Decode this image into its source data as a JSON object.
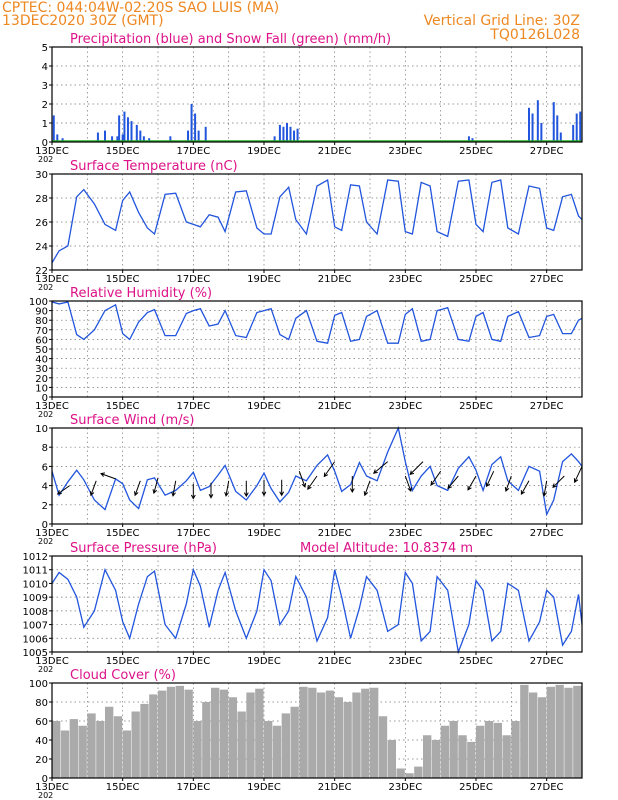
{
  "header": {
    "line1": "CPTEC:   044:04W-02:20S   SAO LUIS (MA)",
    "line2": "13DEC2020 30Z (GMT)",
    "right1": "Vertical Grid Line: 30Z",
    "right2": "TQ0126L028"
  },
  "colors": {
    "header_orange": "#ee8822",
    "title_magenta": "#dd1188",
    "series_blue": "#2255dd",
    "snow_green": "#22aa22",
    "cloud_gray": "#aaaaaa",
    "wind_arrow": "#000000"
  },
  "x_axis": {
    "date_labels": [
      "13DEC",
      "15DEC",
      "17DEC",
      "19DEC",
      "21DEC",
      "23DEC",
      "25DEC",
      "27DEC"
    ],
    "year_fragment": "202",
    "vertical_grid_time": "30Z",
    "days_span": [
      13,
      28
    ]
  },
  "chart_data": [
    {
      "type": "bar",
      "title": "Precipitation (blue) and Snow Fall (green) (mm/h)",
      "ylim": [
        0,
        5
      ],
      "yticks": [
        "0",
        "1",
        "2",
        "3",
        "4",
        "5"
      ],
      "grid": true,
      "series": [
        {
          "name": "Precipitation",
          "color": "#2255dd",
          "points": [
            {
              "day": 13.05,
              "value": 1.4
            },
            {
              "day": 13.15,
              "value": 0.4
            },
            {
              "day": 13.3,
              "value": 0.2
            },
            {
              "day": 14.3,
              "value": 0.5
            },
            {
              "day": 14.5,
              "value": 0.6
            },
            {
              "day": 14.7,
              "value": 0.3
            },
            {
              "day": 14.85,
              "value": 0.3
            },
            {
              "day": 15.0,
              "value": 0.4
            },
            {
              "day": 14.9,
              "value": 1.4
            },
            {
              "day": 15.05,
              "value": 1.6
            },
            {
              "day": 15.15,
              "value": 1.3
            },
            {
              "day": 15.25,
              "value": 1.1
            },
            {
              "day": 15.4,
              "value": 0.9
            },
            {
              "day": 15.5,
              "value": 0.6
            },
            {
              "day": 15.6,
              "value": 0.3
            },
            {
              "day": 15.75,
              "value": 0.2
            },
            {
              "day": 16.35,
              "value": 0.3
            },
            {
              "day": 16.85,
              "value": 0.6
            },
            {
              "day": 16.95,
              "value": 2.0
            },
            {
              "day": 17.05,
              "value": 1.5
            },
            {
              "day": 17.15,
              "value": 0.6
            },
            {
              "day": 17.35,
              "value": 0.8
            },
            {
              "day": 19.3,
              "value": 0.3
            },
            {
              "day": 19.45,
              "value": 0.9
            },
            {
              "day": 19.55,
              "value": 0.8
            },
            {
              "day": 19.65,
              "value": 1.0
            },
            {
              "day": 19.75,
              "value": 0.8
            },
            {
              "day": 19.85,
              "value": 0.6
            },
            {
              "day": 19.95,
              "value": 0.7
            },
            {
              "day": 24.8,
              "value": 0.3
            },
            {
              "day": 24.9,
              "value": 0.2
            },
            {
              "day": 26.5,
              "value": 1.8
            },
            {
              "day": 26.6,
              "value": 1.5
            },
            {
              "day": 26.75,
              "value": 2.2
            },
            {
              "day": 26.85,
              "value": 1.0
            },
            {
              "day": 27.2,
              "value": 2.1
            },
            {
              "day": 27.3,
              "value": 1.4
            },
            {
              "day": 27.4,
              "value": 0.5
            },
            {
              "day": 27.75,
              "value": 0.9
            },
            {
              "day": 27.85,
              "value": 1.5
            },
            {
              "day": 27.95,
              "value": 1.6
            }
          ]
        },
        {
          "name": "Snow Fall",
          "color": "#22aa22",
          "points": []
        }
      ]
    },
    {
      "type": "line",
      "title": "Surface Temperature (nC)",
      "ylim": [
        22,
        30
      ],
      "yticks": [
        "22",
        "24",
        "26",
        "28",
        "30"
      ],
      "grid": true,
      "x": [
        13.0,
        13.2,
        13.45,
        13.7,
        13.9,
        14.2,
        14.5,
        14.8,
        15.0,
        15.2,
        15.45,
        15.7,
        15.9,
        16.2,
        16.5,
        16.8,
        17.0,
        17.2,
        17.45,
        17.7,
        17.9,
        18.2,
        18.5,
        18.8,
        19.0,
        19.2,
        19.45,
        19.7,
        19.9,
        20.2,
        20.5,
        20.8,
        21.0,
        21.2,
        21.45,
        21.7,
        21.9,
        22.2,
        22.5,
        22.8,
        23.0,
        23.2,
        23.45,
        23.7,
        23.9,
        24.2,
        24.5,
        24.8,
        25.0,
        25.2,
        25.45,
        25.7,
        25.9,
        26.2,
        26.5,
        26.8,
        27.0,
        27.2,
        27.45,
        27.7,
        27.9,
        28.0
      ],
      "y": [
        22.6,
        23.6,
        24.0,
        28.1,
        28.7,
        27.5,
        25.8,
        25.3,
        27.8,
        28.5,
        26.8,
        25.5,
        25.0,
        28.3,
        28.4,
        26.0,
        25.8,
        25.6,
        26.6,
        26.4,
        25.2,
        28.5,
        28.6,
        25.5,
        25.0,
        25.0,
        28.1,
        28.9,
        26.2,
        25.0,
        29.0,
        29.5,
        25.6,
        25.3,
        29.1,
        29.0,
        26.0,
        25.0,
        29.5,
        29.4,
        25.2,
        25.0,
        29.3,
        29.0,
        25.2,
        24.8,
        29.4,
        29.5,
        25.8,
        25.2,
        29.3,
        29.5,
        25.5,
        25.0,
        29.0,
        28.8,
        25.5,
        25.3,
        28.1,
        28.3,
        26.5,
        26.2
      ],
      "color": "#2255dd"
    },
    {
      "type": "line",
      "title": "Relative Humidity (%)",
      "ylim": [
        0,
        100
      ],
      "yticks": [
        "0",
        "10",
        "20",
        "30",
        "40",
        "50",
        "60",
        "70",
        "80",
        "90",
        "100"
      ],
      "grid": true,
      "x": [
        13.0,
        13.2,
        13.45,
        13.7,
        13.9,
        14.2,
        14.5,
        14.8,
        15.0,
        15.2,
        15.45,
        15.7,
        15.9,
        16.2,
        16.5,
        16.8,
        17.0,
        17.2,
        17.45,
        17.7,
        17.9,
        18.2,
        18.5,
        18.8,
        19.0,
        19.2,
        19.45,
        19.7,
        19.9,
        20.2,
        20.5,
        20.8,
        21.0,
        21.2,
        21.45,
        21.7,
        21.9,
        22.2,
        22.5,
        22.8,
        23.0,
        23.2,
        23.45,
        23.7,
        23.9,
        24.2,
        24.5,
        24.8,
        25.0,
        25.2,
        25.45,
        25.7,
        25.9,
        26.2,
        26.5,
        26.8,
        27.0,
        27.2,
        27.45,
        27.7,
        27.9,
        28.0
      ],
      "y": [
        99,
        97,
        99,
        65,
        60,
        70,
        90,
        96,
        66,
        60,
        78,
        88,
        91,
        64,
        64,
        87,
        90,
        92,
        74,
        76,
        90,
        64,
        62,
        88,
        90,
        92,
        65,
        60,
        82,
        90,
        58,
        56,
        85,
        88,
        58,
        60,
        84,
        90,
        56,
        56,
        86,
        92,
        58,
        60,
        90,
        93,
        60,
        58,
        84,
        88,
        60,
        58,
        84,
        89,
        62,
        64,
        84,
        86,
        66,
        66,
        80,
        82
      ],
      "color": "#2255dd"
    },
    {
      "type": "line",
      "title": "Surface Wind (m/s)",
      "ylim": [
        0,
        10
      ],
      "yticks": [
        "0",
        "2",
        "4",
        "6",
        "8",
        "10"
      ],
      "grid": true,
      "x": [
        13.0,
        13.2,
        13.45,
        13.7,
        13.9,
        14.2,
        14.5,
        14.8,
        15.0,
        15.2,
        15.45,
        15.7,
        15.9,
        16.2,
        16.5,
        16.8,
        17.0,
        17.2,
        17.45,
        17.7,
        17.9,
        18.2,
        18.5,
        18.8,
        19.0,
        19.2,
        19.45,
        19.7,
        19.9,
        20.2,
        20.5,
        20.8,
        21.0,
        21.2,
        21.45,
        21.7,
        21.9,
        22.2,
        22.5,
        22.8,
        23.0,
        23.2,
        23.45,
        23.7,
        23.9,
        24.2,
        24.5,
        24.8,
        25.0,
        25.2,
        25.45,
        25.7,
        25.9,
        26.2,
        26.5,
        26.8,
        27.0,
        27.2,
        27.45,
        27.7,
        27.9,
        28.0
      ],
      "y": [
        5.5,
        3.0,
        4.4,
        5.6,
        4.6,
        2.5,
        1.5,
        4.7,
        4.2,
        2.5,
        1.6,
        4.6,
        4.8,
        3.0,
        3.5,
        4.5,
        5.4,
        3.5,
        3.9,
        5.1,
        6.1,
        3.4,
        2.5,
        4.0,
        5.3,
        3.7,
        2.3,
        3.3,
        5.0,
        4.5,
        6.1,
        7.2,
        5.5,
        3.4,
        4.1,
        6.4,
        5.0,
        4.5,
        7.5,
        10.0,
        6.5,
        3.5,
        5.0,
        6.0,
        4.0,
        3.5,
        5.8,
        7.0,
        5.6,
        3.5,
        6.2,
        7.0,
        4.5,
        3.5,
        6.0,
        5.5,
        1.0,
        2.5,
        6.5,
        7.3,
        6.5,
        6.0
      ],
      "color": "#2255dd",
      "wind_arrows": [
        {
          "day": 13.5,
          "speed": 4.0,
          "dir_deg": 235
        },
        {
          "day": 14.25,
          "speed": 4.5,
          "dir_deg": 200
        },
        {
          "day": 14.8,
          "speed": 4.7,
          "dir_deg": 290
        },
        {
          "day": 15.5,
          "speed": 4.5,
          "dir_deg": 200
        },
        {
          "day": 16.0,
          "speed": 4.8,
          "dir_deg": 195
        },
        {
          "day": 16.5,
          "speed": 4.5,
          "dir_deg": 190
        },
        {
          "day": 17.0,
          "speed": 4.2,
          "dir_deg": 180
        },
        {
          "day": 17.5,
          "speed": 4.3,
          "dir_deg": 180
        },
        {
          "day": 18.0,
          "speed": 4.5,
          "dir_deg": 190
        },
        {
          "day": 18.5,
          "speed": 4.5,
          "dir_deg": 180
        },
        {
          "day": 19.0,
          "speed": 4.6,
          "dir_deg": 180
        },
        {
          "day": 19.5,
          "speed": 4.6,
          "dir_deg": 180
        },
        {
          "day": 20.0,
          "speed": 5.5,
          "dir_deg": 160
        },
        {
          "day": 20.5,
          "speed": 5.0,
          "dir_deg": 215
        },
        {
          "day": 21.0,
          "speed": 6.5,
          "dir_deg": 215
        },
        {
          "day": 21.5,
          "speed": 5.0,
          "dir_deg": 180
        },
        {
          "day": 22.0,
          "speed": 4.5,
          "dir_deg": 200
        },
        {
          "day": 22.5,
          "speed": 6.5,
          "dir_deg": 230
        },
        {
          "day": 23.0,
          "speed": 5.0,
          "dir_deg": 160
        },
        {
          "day": 23.5,
          "speed": 6.5,
          "dir_deg": 225
        },
        {
          "day": 24.0,
          "speed": 5.5,
          "dir_deg": 215
        },
        {
          "day": 24.5,
          "speed": 5.0,
          "dir_deg": 220
        },
        {
          "day": 25.0,
          "speed": 5.0,
          "dir_deg": 210
        },
        {
          "day": 25.5,
          "speed": 5.5,
          "dir_deg": 205
        },
        {
          "day": 26.0,
          "speed": 5.0,
          "dir_deg": 200
        },
        {
          "day": 26.5,
          "speed": 4.5,
          "dir_deg": 210
        },
        {
          "day": 27.0,
          "speed": 4.5,
          "dir_deg": 190
        },
        {
          "day": 27.5,
          "speed": 5.0,
          "dir_deg": 225
        },
        {
          "day": 28.0,
          "speed": 6.0,
          "dir_deg": 205
        }
      ]
    },
    {
      "type": "line",
      "title": "Surface Pressure (hPa)",
      "extra_label": "Model Altitude: 10.8374 m",
      "ylim": [
        1005,
        1012
      ],
      "yticks": [
        "1005",
        "1006",
        "1007",
        "1008",
        "1009",
        "1010",
        "1011",
        "1012"
      ],
      "grid": true,
      "x": [
        13.0,
        13.2,
        13.45,
        13.7,
        13.9,
        14.2,
        14.5,
        14.8,
        15.0,
        15.2,
        15.45,
        15.7,
        15.9,
        16.2,
        16.5,
        16.8,
        17.0,
        17.2,
        17.45,
        17.7,
        17.9,
        18.2,
        18.5,
        18.8,
        19.0,
        19.2,
        19.45,
        19.7,
        19.9,
        20.2,
        20.5,
        20.8,
        21.0,
        21.2,
        21.45,
        21.7,
        21.9,
        22.2,
        22.5,
        22.8,
        23.0,
        23.2,
        23.45,
        23.7,
        23.9,
        24.2,
        24.5,
        24.8,
        25.0,
        25.2,
        25.45,
        25.7,
        25.9,
        26.2,
        26.5,
        26.8,
        27.0,
        27.2,
        27.45,
        27.7,
        27.9,
        28.0
      ],
      "y": [
        1010.0,
        1010.8,
        1010.3,
        1009.0,
        1006.8,
        1008.0,
        1011.0,
        1009.5,
        1007.2,
        1006.0,
        1008.5,
        1010.5,
        1010.9,
        1007.0,
        1006.0,
        1008.5,
        1011.0,
        1009.8,
        1006.8,
        1009.5,
        1010.8,
        1008.0,
        1006.0,
        1008.0,
        1011.0,
        1010.2,
        1007.0,
        1008.0,
        1010.5,
        1009.0,
        1005.8,
        1007.5,
        1011.0,
        1009.0,
        1006.0,
        1008.2,
        1010.5,
        1009.5,
        1006.5,
        1007.0,
        1010.8,
        1010.0,
        1005.8,
        1006.5,
        1010.5,
        1009.5,
        1005.0,
        1007.0,
        1010.2,
        1009.5,
        1005.8,
        1006.5,
        1010.0,
        1009.5,
        1005.8,
        1007.2,
        1009.5,
        1009.0,
        1005.5,
        1006.5,
        1009.2,
        1007.0
      ],
      "color": "#2255dd"
    },
    {
      "type": "area",
      "title": "Cloud Cover (%)",
      "ylim": [
        0,
        100
      ],
      "yticks": [
        "0",
        "20",
        "40",
        "60",
        "80",
        "100"
      ],
      "grid": true,
      "x": [
        13.0,
        13.25,
        13.5,
        13.75,
        14.0,
        14.25,
        14.5,
        14.75,
        15.0,
        15.25,
        15.5,
        15.75,
        16.0,
        16.25,
        16.5,
        16.75,
        17.0,
        17.25,
        17.5,
        17.75,
        18.0,
        18.25,
        18.5,
        18.75,
        19.0,
        19.25,
        19.5,
        19.75,
        20.0,
        20.25,
        20.5,
        20.75,
        21.0,
        21.25,
        21.5,
        21.75,
        22.0,
        22.25,
        22.5,
        22.75,
        23.0,
        23.25,
        23.5,
        23.75,
        24.0,
        24.25,
        24.5,
        24.75,
        25.0,
        25.25,
        25.5,
        25.75,
        26.0,
        26.25,
        26.5,
        26.75,
        27.0,
        27.25,
        27.5,
        27.75,
        28.0
      ],
      "y": [
        60,
        50,
        62,
        55,
        68,
        60,
        75,
        65,
        50,
        70,
        78,
        88,
        92,
        96,
        97,
        93,
        60,
        80,
        95,
        93,
        85,
        70,
        90,
        94,
        60,
        55,
        68,
        75,
        96,
        95,
        90,
        92,
        85,
        80,
        90,
        94,
        95,
        65,
        40,
        10,
        5,
        12,
        45,
        40,
        55,
        60,
        45,
        38,
        55,
        60,
        58,
        45,
        60,
        98,
        90,
        85,
        96,
        98,
        95,
        97,
        95
      ],
      "color": "#aaaaaa"
    }
  ]
}
